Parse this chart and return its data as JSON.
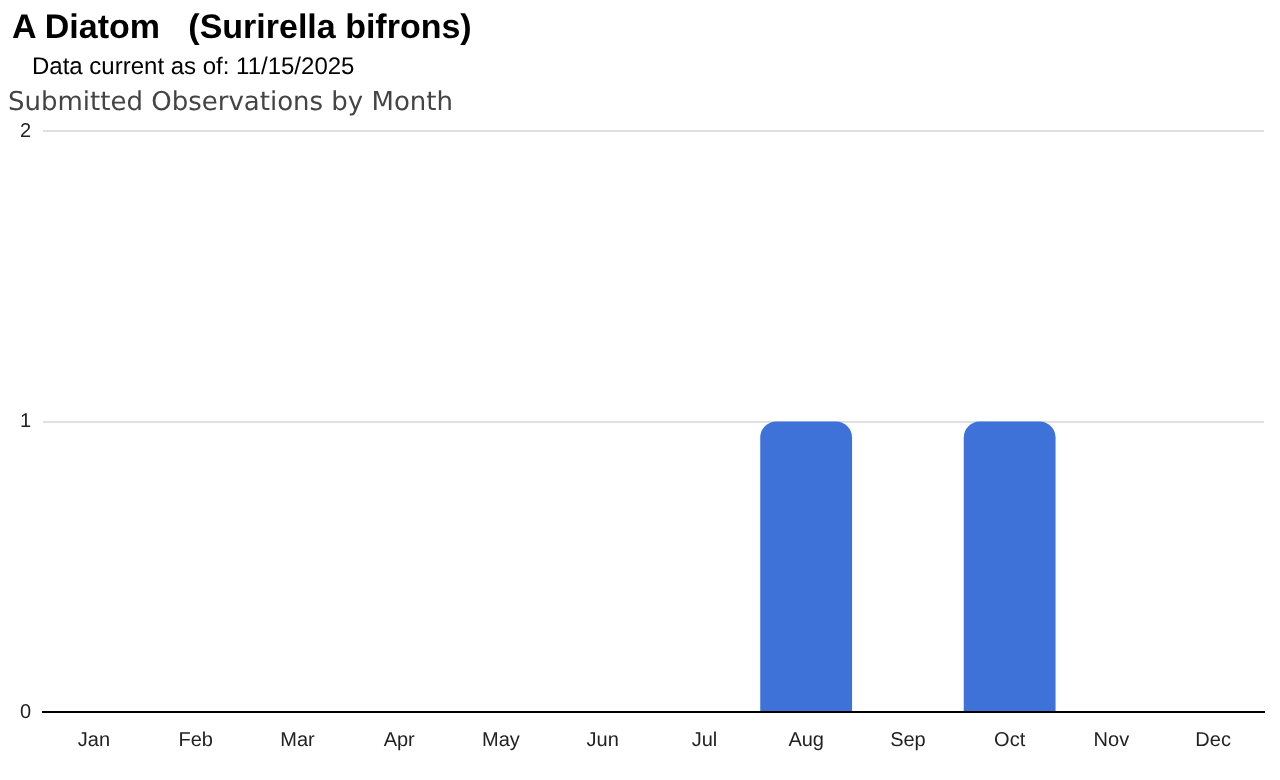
{
  "chart_data": {
    "type": "bar",
    "title": "A Diatom   (Surirella bifrons)",
    "subtitle": "Data current as of: 11/15/2025",
    "annotations": [
      "Submitted Observations by Month"
    ],
    "categories": [
      "Jan",
      "Feb",
      "Mar",
      "Apr",
      "May",
      "Jun",
      "Jul",
      "Aug",
      "Sep",
      "Oct",
      "Nov",
      "Dec"
    ],
    "values": [
      0,
      0,
      0,
      0,
      0,
      0,
      0,
      1,
      0,
      1,
      0,
      0
    ],
    "color": "#3f72d9",
    "ylim": [
      0,
      2
    ],
    "yticks": [
      0,
      1,
      2
    ],
    "grid": "y",
    "legend": false
  }
}
